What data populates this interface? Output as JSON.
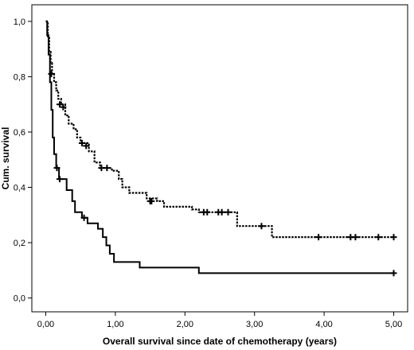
{
  "chart_data": {
    "type": "line",
    "xlabel": "Overall survival since date of chemotherapy (years)",
    "ylabel": "Cum. survival",
    "xlim": [
      -0.2,
      5.2
    ],
    "ylim": [
      -0.05,
      1.06
    ],
    "x_ticks": [
      0,
      1,
      2,
      3,
      4,
      5
    ],
    "y_ticks": [
      0.0,
      0.2,
      0.4,
      0.6,
      0.8,
      1.0
    ],
    "x_tick_labels": [
      "0,00",
      "1,00",
      "2,00",
      "3,00",
      "4,00",
      "5,00"
    ],
    "y_tick_labels": [
      "0,0",
      "0,2",
      "0,4",
      "0,6",
      "0,8",
      "1,0"
    ],
    "grid": false,
    "legend": false,
    "series": [
      {
        "style": "dotted",
        "color": "#000000",
        "steps": [
          [
            0.0,
            1.0
          ],
          [
            0.03,
            0.94
          ],
          [
            0.05,
            0.89
          ],
          [
            0.07,
            0.85
          ],
          [
            0.09,
            0.81
          ],
          [
            0.12,
            0.78
          ],
          [
            0.15,
            0.75
          ],
          [
            0.18,
            0.72
          ],
          [
            0.22,
            0.7
          ],
          [
            0.28,
            0.66
          ],
          [
            0.33,
            0.63
          ],
          [
            0.4,
            0.61
          ],
          [
            0.45,
            0.58
          ],
          [
            0.5,
            0.56
          ],
          [
            0.62,
            0.53
          ],
          [
            0.7,
            0.49
          ],
          [
            0.78,
            0.47
          ],
          [
            0.95,
            0.46
          ],
          [
            1.05,
            0.43
          ],
          [
            1.1,
            0.4
          ],
          [
            1.2,
            0.38
          ],
          [
            1.45,
            0.36
          ],
          [
            1.6,
            0.35
          ],
          [
            1.7,
            0.33
          ],
          [
            2.1,
            0.32
          ],
          [
            2.2,
            0.31
          ],
          [
            2.75,
            0.26
          ],
          [
            3.25,
            0.22
          ],
          [
            5.0,
            0.22
          ]
        ],
        "censored": [
          [
            0.08,
            0.81
          ],
          [
            0.2,
            0.7
          ],
          [
            0.25,
            0.69
          ],
          [
            0.52,
            0.56
          ],
          [
            0.58,
            0.55
          ],
          [
            0.8,
            0.47
          ],
          [
            0.88,
            0.47
          ],
          [
            1.5,
            0.35
          ],
          [
            1.52,
            0.35
          ],
          [
            2.27,
            0.31
          ],
          [
            2.32,
            0.31
          ],
          [
            2.48,
            0.31
          ],
          [
            2.53,
            0.31
          ],
          [
            2.62,
            0.31
          ],
          [
            3.1,
            0.26
          ],
          [
            3.92,
            0.22
          ],
          [
            4.38,
            0.22
          ],
          [
            4.45,
            0.22
          ],
          [
            4.78,
            0.22
          ],
          [
            5.0,
            0.22
          ]
        ]
      },
      {
        "style": "solid",
        "color": "#000000",
        "steps": [
          [
            0.0,
            1.0
          ],
          [
            0.02,
            0.95
          ],
          [
            0.04,
            0.88
          ],
          [
            0.06,
            0.78
          ],
          [
            0.08,
            0.68
          ],
          [
            0.1,
            0.58
          ],
          [
            0.12,
            0.52
          ],
          [
            0.15,
            0.47
          ],
          [
            0.19,
            0.43
          ],
          [
            0.3,
            0.39
          ],
          [
            0.38,
            0.35
          ],
          [
            0.42,
            0.31
          ],
          [
            0.52,
            0.29
          ],
          [
            0.6,
            0.27
          ],
          [
            0.75,
            0.25
          ],
          [
            0.82,
            0.22
          ],
          [
            0.87,
            0.19
          ],
          [
            0.92,
            0.16
          ],
          [
            0.98,
            0.13
          ],
          [
            1.35,
            0.11
          ],
          [
            2.2,
            0.09
          ],
          [
            5.0,
            0.09
          ]
        ],
        "censored": [
          [
            0.16,
            0.47
          ],
          [
            0.2,
            0.43
          ],
          [
            0.55,
            0.29
          ],
          [
            5.0,
            0.09
          ]
        ]
      }
    ]
  }
}
